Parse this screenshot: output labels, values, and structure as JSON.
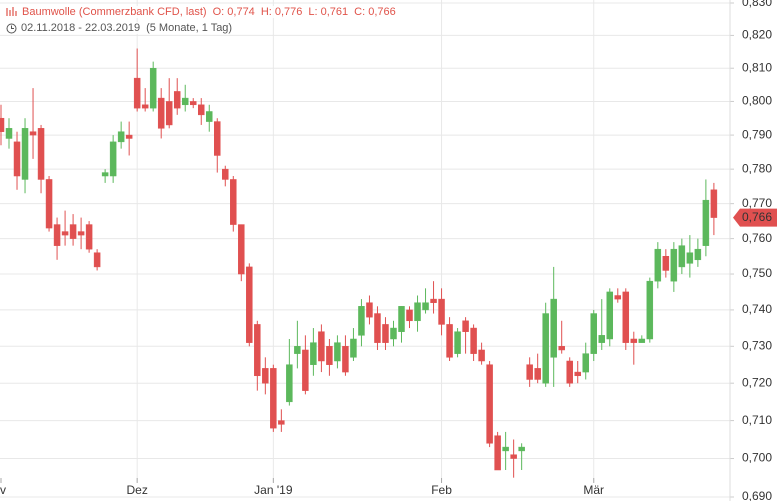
{
  "chart_data": {
    "type": "candlestick",
    "header": {
      "instrument": "Baumwolle (Commerzbank CFD, last)",
      "open": "O: 0,774",
      "high": "H: 0,776",
      "low": "L: 0,761",
      "close": "C: 0,766",
      "range": "02.11.2018 - 22.03.2019",
      "duration": "(5 Monate, 1 Tag)"
    },
    "log_scale": true,
    "grid": true,
    "up_color": "#5cb85c",
    "down_color": "#e05050",
    "categories": [
      "v",
      null,
      null,
      null,
      null,
      null,
      null,
      null,
      null,
      null,
      null,
      null,
      null,
      null,
      null,
      null,
      null,
      "Dez",
      null,
      null,
      null,
      null,
      null,
      null,
      null,
      null,
      null,
      null,
      null,
      null,
      null,
      null,
      null,
      null,
      "Jan '19",
      null,
      null,
      null,
      null,
      null,
      null,
      null,
      null,
      null,
      null,
      null,
      null,
      null,
      null,
      null,
      null,
      null,
      null,
      null,
      null,
      "Feb",
      null,
      null,
      null,
      null,
      null,
      null,
      null,
      null,
      null,
      null,
      null,
      null,
      null,
      null,
      null,
      null,
      null,
      null,
      "Mär",
      null,
      null,
      null,
      null,
      null,
      null,
      null,
      null,
      null,
      null,
      null,
      null,
      null,
      null,
      null
    ],
    "open": [
      0.795,
      0.789,
      0.788,
      0.777,
      0.791,
      0.792,
      0.777,
      0.764,
      0.762,
      0.764,
      0.762,
      0.764,
      0.756,
      0.778,
      0.778,
      0.788,
      0.79,
      0.807,
      0.799,
      0.798,
      0.801,
      0.8,
      0.803,
      0.799,
      0.8,
      0.799,
      0.794,
      0.794,
      0.78,
      0.777,
      0.764,
      0.752,
      0.736,
      0.724,
      0.724,
      0.71,
      0.715,
      0.728,
      0.729,
      0.725,
      0.734,
      0.73,
      0.726,
      0.73,
      0.727,
      0.733,
      0.742,
      0.739,
      0.736,
      0.732,
      0.734,
      0.74,
      0.737,
      0.74,
      0.743,
      0.743,
      0.736,
      0.728,
      0.737,
      0.735,
      0.729,
      0.725,
      0.706,
      0.702,
      0.701,
      0.702,
      0.725,
      0.724,
      0.72,
      0.727,
      0.73,
      0.726,
      0.723,
      0.723,
      0.728,
      0.731,
      0.732,
      0.744,
      0.745,
      0.732,
      0.731,
      0.732,
      0.748,
      0.755,
      0.748,
      0.752,
      0.753,
      0.754,
      0.758,
      0.774
    ],
    "high": [
      0.799,
      0.795,
      0.791,
      0.795,
      0.804,
      0.793,
      0.778,
      0.766,
      0.768,
      0.767,
      0.766,
      0.765,
      0.757,
      0.78,
      0.79,
      0.794,
      0.794,
      0.816,
      0.804,
      0.812,
      0.804,
      0.807,
      0.807,
      0.805,
      0.801,
      0.801,
      0.799,
      0.795,
      0.781,
      0.778,
      0.764,
      0.753,
      0.737,
      0.727,
      0.725,
      0.713,
      0.732,
      0.737,
      0.733,
      0.735,
      0.736,
      0.732,
      0.733,
      0.733,
      0.735,
      0.743,
      0.744,
      0.741,
      0.738,
      0.737,
      0.741,
      0.741,
      0.744,
      0.746,
      0.748,
      0.746,
      0.738,
      0.735,
      0.738,
      0.736,
      0.731,
      0.726,
      0.707,
      0.707,
      0.705,
      0.704,
      0.727,
      0.728,
      0.742,
      0.752,
      0.737,
      0.727,
      0.726,
      0.731,
      0.74,
      0.743,
      0.746,
      0.746,
      0.746,
      0.734,
      0.733,
      0.749,
      0.759,
      0.757,
      0.759,
      0.76,
      0.761,
      0.76,
      0.777,
      0.776
    ],
    "low": [
      0.787,
      0.786,
      0.774,
      0.773,
      0.783,
      0.773,
      0.762,
      0.754,
      0.758,
      0.758,
      0.757,
      0.756,
      0.751,
      0.776,
      0.776,
      0.786,
      0.784,
      0.797,
      0.797,
      0.797,
      0.789,
      0.792,
      0.796,
      0.797,
      0.798,
      0.793,
      0.791,
      0.779,
      0.775,
      0.762,
      0.748,
      0.73,
      0.718,
      0.717,
      0.707,
      0.707,
      0.714,
      0.724,
      0.717,
      0.722,
      0.723,
      0.722,
      0.724,
      0.722,
      0.726,
      0.73,
      0.736,
      0.729,
      0.729,
      0.73,
      0.731,
      0.735,
      0.734,
      0.739,
      0.739,
      0.733,
      0.726,
      0.727,
      0.728,
      0.726,
      0.725,
      0.703,
      0.697,
      0.697,
      0.695,
      0.697,
      0.719,
      0.72,
      0.719,
      0.719,
      0.728,
      0.719,
      0.72,
      0.721,
      0.726,
      0.729,
      0.73,
      0.742,
      0.729,
      0.725,
      0.731,
      0.731,
      0.746,
      0.749,
      0.745,
      0.75,
      0.749,
      0.752,
      0.755,
      0.761
    ],
    "close": [
      0.791,
      0.792,
      0.778,
      0.792,
      0.79,
      0.777,
      0.763,
      0.758,
      0.761,
      0.76,
      0.761,
      0.757,
      0.752,
      0.779,
      0.788,
      0.791,
      0.789,
      0.798,
      0.798,
      0.81,
      0.792,
      0.793,
      0.798,
      0.801,
      0.799,
      0.796,
      0.797,
      0.784,
      0.777,
      0.764,
      0.75,
      0.731,
      0.722,
      0.72,
      0.708,
      0.709,
      0.725,
      0.73,
      0.718,
      0.731,
      0.726,
      0.725,
      0.731,
      0.723,
      0.732,
      0.741,
      0.738,
      0.731,
      0.731,
      0.735,
      0.741,
      0.737,
      0.742,
      0.742,
      0.742,
      0.736,
      0.727,
      0.734,
      0.734,
      0.728,
      0.726,
      0.704,
      0.697,
      0.703,
      0.7,
      0.703,
      0.721,
      0.721,
      0.739,
      0.743,
      0.729,
      0.72,
      0.722,
      0.728,
      0.739,
      0.733,
      0.745,
      0.743,
      0.731,
      0.731,
      0.732,
      0.748,
      0.757,
      0.751,
      0.757,
      0.758,
      0.756,
      0.757,
      0.771,
      0.766
    ],
    "ylim": [
      0.69,
      0.83
    ],
    "yticks": [
      {
        "value": 0.69,
        "label": "0,690"
      },
      {
        "value": 0.7,
        "label": "0,700"
      },
      {
        "value": 0.71,
        "label": "0,710"
      },
      {
        "value": 0.72,
        "label": "0,720"
      },
      {
        "value": 0.73,
        "label": "0,730"
      },
      {
        "value": 0.74,
        "label": "0,740"
      },
      {
        "value": 0.75,
        "label": "0,750"
      },
      {
        "value": 0.76,
        "label": "0,760"
      },
      {
        "value": 0.77,
        "label": "0,770"
      },
      {
        "value": 0.78,
        "label": "0,780"
      },
      {
        "value": 0.79,
        "label": "0,790"
      },
      {
        "value": 0.8,
        "label": "0,800"
      },
      {
        "value": 0.81,
        "label": "0,810"
      },
      {
        "value": 0.82,
        "label": "0,820"
      },
      {
        "value": 0.83,
        "label": "0,830"
      }
    ],
    "last_price": {
      "value": 0.766,
      "label": "0,766"
    }
  }
}
